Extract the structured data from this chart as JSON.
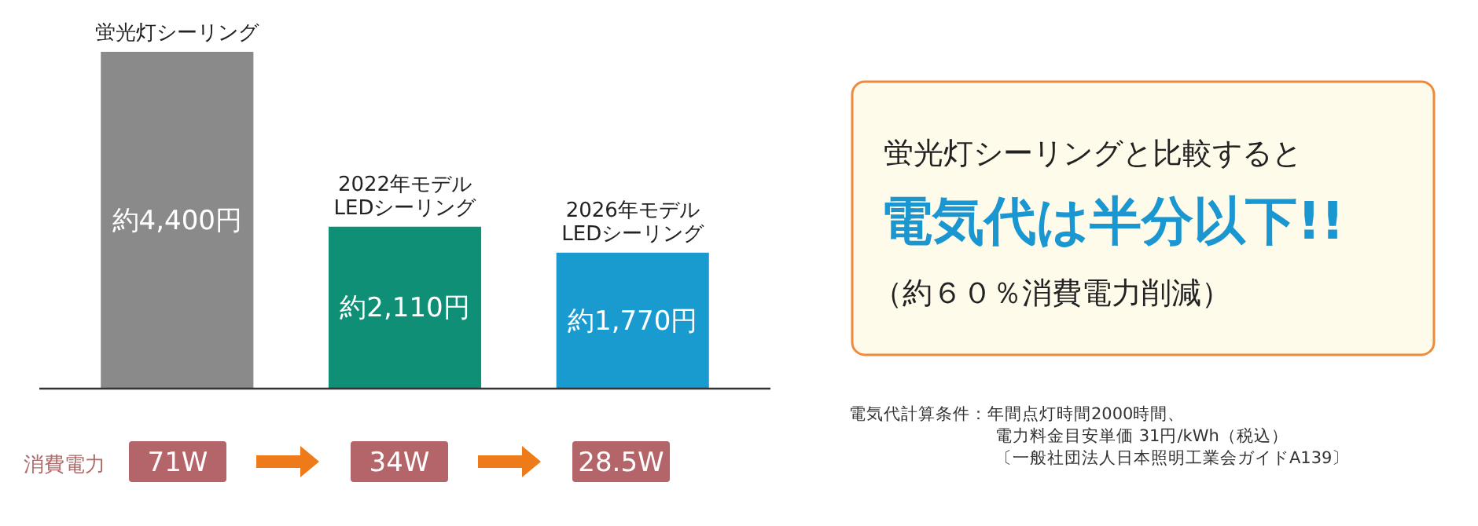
{
  "chart_data": {
    "type": "bar",
    "categories": [
      "蛍光灯シーリング",
      "2022年モデル\nLEDシーリング",
      "2026年モデル\nLEDシーリング"
    ],
    "values": [
      4400,
      2110,
      1770
    ],
    "colors": [
      "#8a8a8a",
      "#0e8f76",
      "#1a9bd0"
    ],
    "value_labels": [
      "約4,400円",
      "約2,110円",
      "約1,770円"
    ],
    "annotations": [
      "消費電力",
      "71W",
      "34W",
      "28.5W",
      "蛍光灯シーリングと比較すると",
      "電気代は半分以下!!",
      "（約６０％消費電力削減）",
      "電気代計算条件：年間点灯時間2000時間、",
      "電力料金目安単価 31円/kWh（税込）",
      "〔一般社団法人日本照明工業会ガイドA139〕"
    ]
  }
}
